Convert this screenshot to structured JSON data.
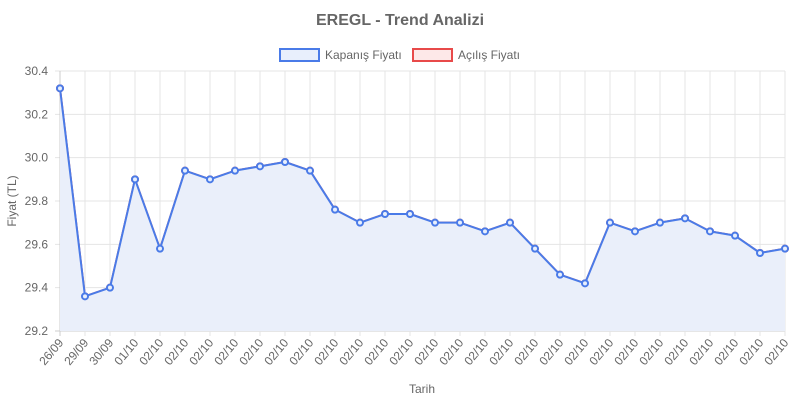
{
  "chart_data": {
    "type": "line",
    "title": "EREGL - Trend Analizi",
    "xlabel": "Tarih",
    "ylabel": "Fiyat (TL)",
    "ylim": [
      29.2,
      30.4
    ],
    "yticks": [
      "30.4",
      "30.2",
      "30.0",
      "29.8",
      "29.6",
      "29.4",
      "29.2"
    ],
    "grid": true,
    "legend_position": "top",
    "categories": [
      "26/09",
      "29/09",
      "30/09",
      "01/10",
      "02/10",
      "02/10",
      "02/10",
      "02/10",
      "02/10",
      "02/10",
      "02/10",
      "02/10",
      "02/10",
      "02/10",
      "02/10",
      "02/10",
      "02/10",
      "02/10",
      "02/10",
      "02/10",
      "02/10",
      "02/10",
      "02/10",
      "02/10",
      "02/10",
      "02/10",
      "02/10",
      "02/10",
      "02/10",
      "02/10"
    ],
    "series": [
      {
        "name": "Kapanış Fiyatı",
        "color": "#4a7be8",
        "fill": "#e8effc",
        "values": [
          30.32,
          29.36,
          29.4,
          29.9,
          29.58,
          29.94,
          29.9,
          29.94,
          29.96,
          29.98,
          29.94,
          29.76,
          29.7,
          29.74,
          29.74,
          29.7,
          29.7,
          29.66,
          29.7,
          29.58,
          29.46,
          29.42,
          29.7,
          29.66,
          29.7,
          29.72,
          29.66,
          29.64,
          29.56,
          29.58
        ]
      },
      {
        "name": "Açılış Fiyatı",
        "color": "#e84a4a",
        "fill": "#fde8e8",
        "values": [
          30.32,
          29.36,
          29.4,
          29.9,
          29.58,
          29.94,
          29.9,
          29.94,
          29.96,
          29.98,
          29.94,
          29.76,
          29.7,
          29.74,
          29.74,
          29.7,
          29.7,
          29.66,
          29.7,
          29.58,
          29.46,
          29.42,
          29.7,
          29.66,
          29.7,
          29.72,
          29.66,
          29.64,
          29.56,
          29.58
        ]
      }
    ]
  }
}
